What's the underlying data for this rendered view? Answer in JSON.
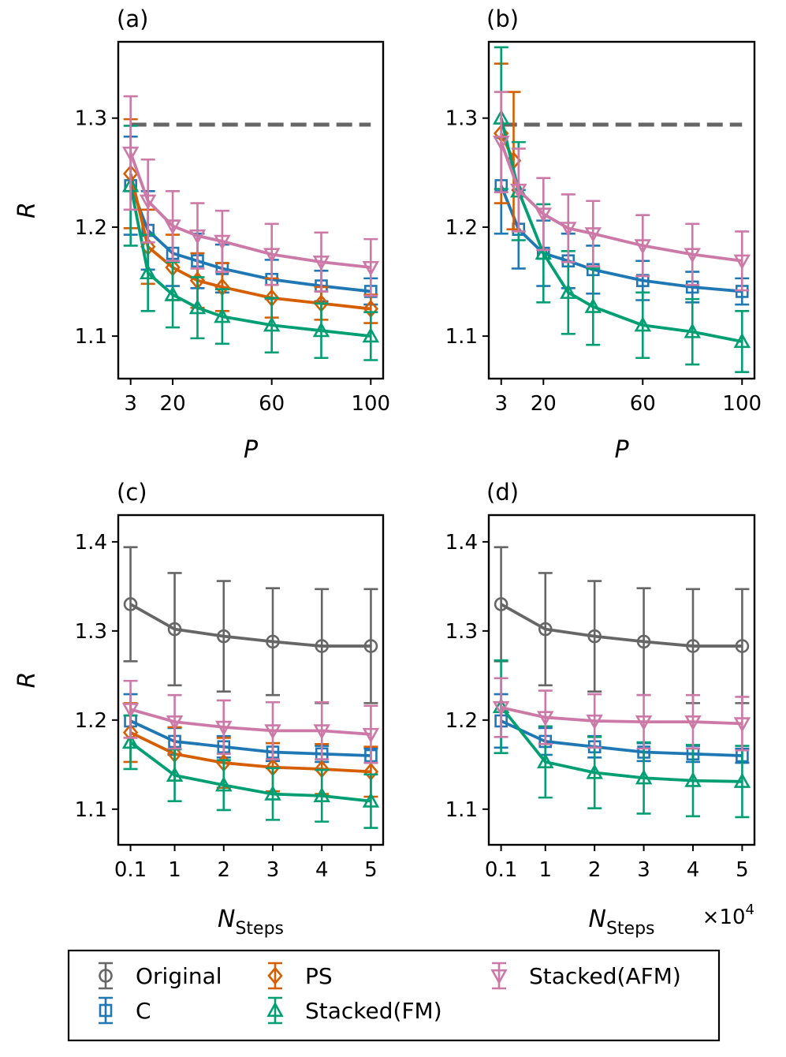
{
  "colors": {
    "Original": "#666666",
    "C": "#1f77b4",
    "PS": "#d55e00",
    "Stacked(FM)": "#009e73",
    "Stacked(AFM)": "#cc79a7",
    "reference": "#666666"
  },
  "legend": {
    "entries": [
      {
        "name": "Original",
        "marker": "circle"
      },
      {
        "name": "PS",
        "marker": "diamond"
      },
      {
        "name": "Stacked(AFM)",
        "marker": "triangle-down"
      },
      {
        "name": "C",
        "marker": "square"
      },
      {
        "name": "Stacked(FM)",
        "marker": "triangle-up"
      }
    ]
  },
  "chart_data": [
    {
      "panel": "(a)",
      "type": "line",
      "xlabel": "P",
      "ylabel": "R",
      "xticks": [
        3,
        20,
        60,
        100
      ],
      "xtick_labels": [
        "3",
        "20",
        "60",
        "100"
      ],
      "yticks": [
        1.1,
        1.2,
        1.3
      ],
      "ytick_labels": [
        "1.1",
        "1.2",
        "1.3"
      ],
      "xlim": [
        -2,
        105
      ],
      "ylim": [
        1.061,
        1.37
      ],
      "reference_line": {
        "y": 1.294,
        "x_range": [
          3,
          100
        ],
        "style": "dashed"
      },
      "series": [
        {
          "name": "C",
          "marker": "square",
          "x": [
            3,
            10,
            20,
            30,
            40,
            60,
            80,
            100
          ],
          "y": [
            1.238,
            1.197,
            1.176,
            1.169,
            1.162,
            1.152,
            1.146,
            1.141
          ],
          "err": [
            0.045,
            0.036,
            0.03,
            0.025,
            0.022,
            0.018,
            0.014,
            0.012
          ]
        },
        {
          "name": "PS",
          "marker": "diamond",
          "x": [
            3,
            10,
            20,
            30,
            40,
            60,
            80,
            100
          ],
          "y": [
            1.249,
            1.182,
            1.163,
            1.151,
            1.145,
            1.135,
            1.13,
            1.125
          ],
          "err": [
            0.05,
            0.034,
            0.03,
            0.025,
            0.022,
            0.018,
            0.015,
            0.013
          ]
        },
        {
          "name": "Stacked(FM)",
          "marker": "triangle-up",
          "x": [
            3,
            10,
            20,
            30,
            40,
            60,
            80,
            100
          ],
          "y": [
            1.238,
            1.158,
            1.138,
            1.126,
            1.118,
            1.11,
            1.105,
            1.1
          ],
          "err": [
            0.055,
            0.035,
            0.03,
            0.028,
            0.025,
            0.025,
            0.025,
            0.022
          ]
        },
        {
          "name": "Stacked(AFM)",
          "marker": "triangle-down",
          "x": [
            3,
            10,
            20,
            30,
            40,
            60,
            80,
            100
          ],
          "y": [
            1.268,
            1.224,
            1.201,
            1.192,
            1.187,
            1.175,
            1.168,
            1.163
          ],
          "err": [
            0.052,
            0.038,
            0.032,
            0.03,
            0.028,
            0.028,
            0.027,
            0.026
          ]
        }
      ]
    },
    {
      "panel": "(b)",
      "type": "line",
      "xlabel": "P",
      "ylabel": "",
      "xticks": [
        3,
        20,
        60,
        100
      ],
      "xtick_labels": [
        "3",
        "20",
        "60",
        "100"
      ],
      "yticks": [
        1.1,
        1.2,
        1.3
      ],
      "ytick_labels": [
        "1.1",
        "1.2",
        "1.3"
      ],
      "xlim": [
        -2,
        105
      ],
      "ylim": [
        1.061,
        1.37
      ],
      "reference_line": {
        "y": 1.294,
        "x_range": [
          3,
          100
        ],
        "style": "dashed"
      },
      "series": [
        {
          "name": "C",
          "marker": "square",
          "x": [
            3,
            10,
            20,
            30,
            40,
            60,
            80,
            100
          ],
          "y": [
            1.238,
            1.198,
            1.176,
            1.169,
            1.161,
            1.151,
            1.145,
            1.141
          ],
          "err": [
            0.044,
            0.036,
            0.03,
            0.025,
            0.022,
            0.018,
            0.014,
            0.012
          ]
        },
        {
          "name": "PS",
          "marker": "diamond",
          "x": [
            3,
            8
          ],
          "y": [
            1.286,
            1.261
          ],
          "err": [
            0.064,
            0.063
          ]
        },
        {
          "name": "Stacked(FM)",
          "marker": "triangle-up",
          "x": [
            3,
            10,
            20,
            30,
            40,
            60,
            80,
            100
          ],
          "y": [
            1.3,
            1.233,
            1.176,
            1.14,
            1.127,
            1.11,
            1.104,
            1.095
          ],
          "err": [
            0.065,
            0.045,
            0.045,
            0.038,
            0.035,
            0.03,
            0.03,
            0.028
          ]
        },
        {
          "name": "Stacked(AFM)",
          "marker": "triangle-down",
          "x": [
            3,
            10,
            20,
            30,
            40,
            60,
            80,
            100
          ],
          "y": [
            1.278,
            1.234,
            1.212,
            1.199,
            1.194,
            1.183,
            1.175,
            1.169
          ],
          "err": [
            0.046,
            0.038,
            0.033,
            0.031,
            0.03,
            0.028,
            0.028,
            0.027
          ]
        }
      ]
    },
    {
      "panel": "(c)",
      "type": "line",
      "xlabel": "N",
      "xlabel_sub": "Steps",
      "ylabel": "R",
      "xticks": [
        0.1,
        1,
        2,
        3,
        4,
        5
      ],
      "xtick_labels": [
        "0.1",
        "1",
        "2",
        "3",
        "4",
        "5"
      ],
      "yticks": [
        1.1,
        1.2,
        1.3,
        1.4
      ],
      "ytick_labels": [
        "1.1",
        "1.2",
        "1.3",
        "1.4"
      ],
      "xlim": [
        -0.15,
        5.25
      ],
      "ylim": [
        1.06,
        1.43
      ],
      "series": [
        {
          "name": "Original",
          "marker": "circle",
          "x": [
            0.1,
            1,
            2,
            3,
            4,
            5
          ],
          "y": [
            1.33,
            1.302,
            1.294,
            1.288,
            1.283,
            1.283
          ],
          "err": [
            0.064,
            0.063,
            0.062,
            0.06,
            0.064,
            0.064
          ]
        },
        {
          "name": "C",
          "marker": "square",
          "x": [
            0.1,
            1,
            2,
            3,
            4,
            5
          ],
          "y": [
            1.199,
            1.176,
            1.17,
            1.164,
            1.162,
            1.16
          ],
          "err": [
            0.03,
            0.015,
            0.012,
            0.01,
            0.009,
            0.008
          ]
        },
        {
          "name": "PS",
          "marker": "diamond",
          "x": [
            0.1,
            1,
            2,
            3,
            4,
            5
          ],
          "y": [
            1.186,
            1.162,
            1.152,
            1.147,
            1.145,
            1.142
          ],
          "err": [
            0.033,
            0.03,
            0.028,
            0.027,
            0.028,
            0.028
          ]
        },
        {
          "name": "Stacked(FM)",
          "marker": "triangle-up",
          "x": [
            0.1,
            1,
            2,
            3,
            4,
            5
          ],
          "y": [
            1.175,
            1.138,
            1.127,
            1.117,
            1.115,
            1.109
          ],
          "err": [
            0.03,
            0.029,
            0.028,
            0.029,
            0.029,
            0.03
          ]
        },
        {
          "name": "Stacked(AFM)",
          "marker": "triangle-down",
          "x": [
            0.1,
            1,
            2,
            3,
            4,
            5
          ],
          "y": [
            1.212,
            1.198,
            1.192,
            1.188,
            1.188,
            1.184
          ],
          "err": [
            0.032,
            0.03,
            0.03,
            0.032,
            0.032,
            0.032
          ]
        }
      ]
    },
    {
      "panel": "(d)",
      "type": "line",
      "xlabel": "N",
      "xlabel_sub": "Steps",
      "ylabel": "",
      "axis_multiplier": "×10",
      "axis_multiplier_exp": "4",
      "xticks": [
        0.1,
        1,
        2,
        3,
        4,
        5
      ],
      "xtick_labels": [
        "0.1",
        "1",
        "2",
        "3",
        "4",
        "5"
      ],
      "yticks": [
        1.1,
        1.2,
        1.3,
        1.4
      ],
      "ytick_labels": [
        "1.1",
        "1.2",
        "1.3",
        "1.4"
      ],
      "xlim": [
        -0.15,
        5.25
      ],
      "ylim": [
        1.06,
        1.43
      ],
      "series": [
        {
          "name": "Original",
          "marker": "circle",
          "x": [
            0.1,
            1,
            2,
            3,
            4,
            5
          ],
          "y": [
            1.33,
            1.302,
            1.294,
            1.288,
            1.283,
            1.283
          ],
          "err": [
            0.064,
            0.063,
            0.062,
            0.06,
            0.064,
            0.064
          ]
        },
        {
          "name": "C",
          "marker": "square",
          "x": [
            0.1,
            1,
            2,
            3,
            4,
            5
          ],
          "y": [
            1.199,
            1.176,
            1.17,
            1.164,
            1.162,
            1.16
          ],
          "err": [
            0.03,
            0.015,
            0.012,
            0.01,
            0.009,
            0.008
          ]
        },
        {
          "name": "Stacked(FM)",
          "marker": "triangle-up",
          "x": [
            0.1,
            1,
            2,
            3,
            4,
            5
          ],
          "y": [
            1.215,
            1.153,
            1.141,
            1.135,
            1.132,
            1.131
          ],
          "err": [
            0.052,
            0.04,
            0.04,
            0.04,
            0.04,
            0.04
          ]
        },
        {
          "name": "Stacked(AFM)",
          "marker": "triangle-down",
          "x": [
            0.1,
            1,
            2,
            3,
            4,
            5
          ],
          "y": [
            1.214,
            1.203,
            1.199,
            1.198,
            1.198,
            1.196
          ],
          "err": [
            0.033,
            0.03,
            0.03,
            0.03,
            0.03,
            0.03
          ]
        }
      ]
    }
  ]
}
